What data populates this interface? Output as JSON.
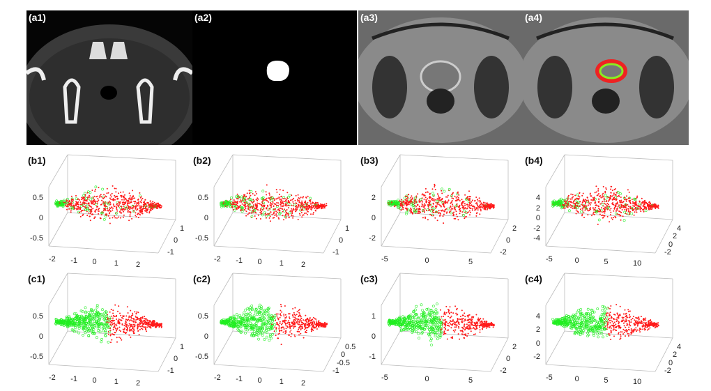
{
  "images": [
    {
      "label": "(a1)",
      "kind": "CT"
    },
    {
      "label": "(a2)",
      "kind": "mask"
    },
    {
      "label": "(a3)",
      "kind": "MR"
    },
    {
      "label": "(a4)",
      "kind": "MR-overlay"
    }
  ],
  "colors": {
    "class_a": "#22ee22",
    "class_b": "#ff1a1a",
    "ring_outer": "#ee2222",
    "ring_inner": "#88ee22"
  },
  "chart_data": [
    {
      "label": "(b1)",
      "type": "scatter3d",
      "zticks": [
        "0.5",
        "0",
        "-0.5"
      ],
      "xticks": [
        "-2",
        "-1",
        "0",
        "1",
        "2"
      ],
      "yticks": [
        "1",
        "0",
        "-1"
      ],
      "separation": "mixed"
    },
    {
      "label": "(b2)",
      "type": "scatter3d",
      "zticks": [
        "0.5",
        "0",
        "-0.5"
      ],
      "xticks": [
        "-2",
        "-1",
        "0",
        "1",
        "2"
      ],
      "yticks": [
        "1",
        "0",
        "-1"
      ],
      "separation": "mixed"
    },
    {
      "label": "(b3)",
      "type": "scatter3d",
      "zticks": [
        "2",
        "0",
        "-2"
      ],
      "xticks": [
        "-5",
        "0",
        "5"
      ],
      "yticks": [
        "2",
        "0",
        "-2"
      ],
      "separation": "mixed"
    },
    {
      "label": "(b4)",
      "type": "scatter3d",
      "zticks": [
        "4",
        "2",
        "0",
        "-2",
        "-4"
      ],
      "xticks": [
        "-5",
        "0",
        "5",
        "10"
      ],
      "yticks": [
        "4",
        "2",
        "0",
        "-2"
      ],
      "separation": "mixed"
    },
    {
      "label": "(c1)",
      "type": "scatter3d",
      "zticks": [
        "0.5",
        "0",
        "-0.5"
      ],
      "xticks": [
        "-2",
        "-1",
        "0",
        "1",
        "2"
      ],
      "yticks": [
        "1",
        "0",
        "-1"
      ],
      "separation": "split"
    },
    {
      "label": "(c2)",
      "type": "scatter3d",
      "zticks": [
        "0.5",
        "0",
        "-0.5"
      ],
      "xticks": [
        "-2",
        "-1",
        "0",
        "1",
        "2"
      ],
      "yticks": [
        "0.5",
        "0",
        "-0.5",
        "-1"
      ],
      "separation": "split"
    },
    {
      "label": "(c3)",
      "type": "scatter3d",
      "zticks": [
        "1",
        "0",
        "-1"
      ],
      "xticks": [
        "-5",
        "0",
        "5"
      ],
      "yticks": [
        "2",
        "0",
        "-2"
      ],
      "separation": "split"
    },
    {
      "label": "(c4)",
      "type": "scatter3d",
      "zticks": [
        "4",
        "2",
        "0",
        "-2"
      ],
      "xticks": [
        "-5",
        "0",
        "5",
        "10"
      ],
      "yticks": [
        "4",
        "2",
        "0",
        "-2"
      ],
      "separation": "split"
    }
  ]
}
